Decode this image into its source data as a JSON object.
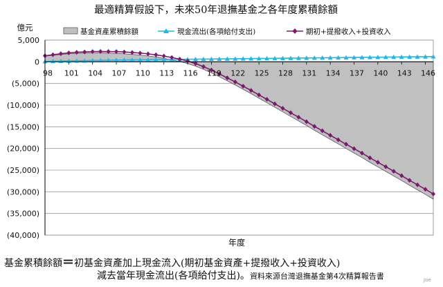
{
  "chart_data": {
    "type": "line",
    "title": "最適精算假設下，未來50年退撫基金之各年度累積餘額",
    "ylabel": "億元",
    "xlabel": "年度",
    "ylim": [
      -40000,
      5000
    ],
    "yticks": [
      5000,
      0,
      -5000,
      -10000,
      -15000,
      -20000,
      -25000,
      -30000,
      -35000,
      -40000
    ],
    "ytick_labels": [
      "5,000",
      "0",
      "(5,000)",
      "(10,000)",
      "(15,000)",
      "(20,000)",
      "(25,000)",
      "(30,000)",
      "(35,000)",
      "(40,000)"
    ],
    "xlim": [
      98,
      147
    ],
    "xticks": [
      98,
      101,
      104,
      107,
      110,
      113,
      116,
      119,
      122,
      125,
      128,
      131,
      134,
      137,
      140,
      143,
      146
    ],
    "grid": "horizontal",
    "legend_position": "top",
    "x": [
      98,
      99,
      100,
      101,
      102,
      103,
      104,
      105,
      106,
      107,
      108,
      109,
      110,
      111,
      112,
      113,
      114,
      115,
      116,
      117,
      118,
      119,
      120,
      121,
      122,
      123,
      124,
      125,
      126,
      127,
      128,
      129,
      130,
      131,
      132,
      133,
      134,
      135,
      136,
      137,
      138,
      139,
      140,
      141,
      142,
      143,
      144,
      145,
      146,
      147
    ],
    "series": [
      {
        "name": "基金資產累積餘額",
        "kind": "area",
        "color": "#c0c0c0",
        "values": [
          1300,
          1500,
          1700,
          1850,
          1950,
          2000,
          2050,
          2050,
          2000,
          1950,
          1850,
          1700,
          1550,
          1350,
          1100,
          800,
          450,
          50,
          -400,
          -1000,
          -1750,
          -2550,
          -3450,
          -4400,
          -5350,
          -6350,
          -7350,
          -8400,
          -9450,
          -10500,
          -11550,
          -12600,
          -13650,
          -14700,
          -15800,
          -16850,
          -17900,
          -18950,
          -20000,
          -21050,
          -22100,
          -23200,
          -24250,
          -25300,
          -26350,
          -27400,
          -28500,
          -29550,
          -30600,
          -31700
        ]
      },
      {
        "name": "現金流出(各項給付支出)",
        "kind": "line",
        "marker": "triangle",
        "color": "#1fb8e8",
        "values": [
          80,
          120,
          160,
          200,
          240,
          270,
          300,
          330,
          360,
          390,
          420,
          440,
          460,
          480,
          500,
          520,
          540,
          560,
          580,
          600,
          620,
          640,
          660,
          680,
          700,
          720,
          740,
          760,
          780,
          800,
          820,
          840,
          860,
          880,
          900,
          920,
          940,
          960,
          980,
          1000,
          1020,
          1040,
          1060,
          1080,
          1100,
          1120,
          1140,
          1160,
          1180,
          1200
        ]
      },
      {
        "name": "期初+提撥收入+投資收入",
        "kind": "line",
        "marker": "diamond",
        "color": "#7a1a6e",
        "values": [
          1380,
          1620,
          1860,
          2050,
          2190,
          2270,
          2350,
          2380,
          2360,
          2340,
          2270,
          2140,
          2010,
          1830,
          1600,
          1320,
          990,
          610,
          180,
          -400,
          -1130,
          -1910,
          -2790,
          -3720,
          -4650,
          -5630,
          -6610,
          -7640,
          -8670,
          -9700,
          -10730,
          -11760,
          -12790,
          -13820,
          -14900,
          -15930,
          -16960,
          -17990,
          -19020,
          -20050,
          -21080,
          -22160,
          -23190,
          -24220,
          -25250,
          -26280,
          -27360,
          -28390,
          -29420,
          -30500
        ]
      }
    ]
  },
  "footer": {
    "term": "基金累積餘額",
    "equals": "＝",
    "line1_rest": "初基金資產加上現金流入(期初基金資產+提撥收入+投資收入)",
    "line2": "減去當年現金流出(各項給付支出)。",
    "source": "資料來源台灣退撫基金第4次精算報告書",
    "signature": "Joe"
  }
}
